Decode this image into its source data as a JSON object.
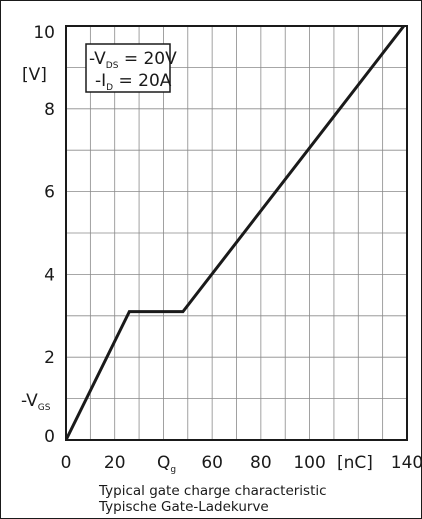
{
  "chart_data": {
    "type": "line",
    "title": "",
    "caption": [
      "Typical gate charge characteristic",
      "Typische Gate-Ladekurve"
    ],
    "xlabel": "Q",
    "xlabel_sub": "g",
    "xunit": "[nC]",
    "ylabel": "-V",
    "ylabel_sub": "GS",
    "yunit": "[V]",
    "xlim": [
      0,
      140
    ],
    "ylim": [
      0,
      10
    ],
    "grid": true,
    "x_ticks": [
      0,
      20,
      40,
      60,
      80,
      100,
      120,
      140
    ],
    "x_tick_labels": [
      "0",
      "20",
      "",
      "60",
      "80",
      "100",
      "",
      "140"
    ],
    "y_ticks": [
      0,
      2,
      4,
      6,
      8,
      10
    ],
    "y_tick_labels": [
      "0",
      "2",
      "4",
      "6",
      "8",
      "10"
    ],
    "conditions": [
      {
        "text": "-V",
        "sub": "DS",
        "value": " = 20V"
      },
      {
        "text": "-I",
        "sub": "D",
        "value": " = 20A"
      }
    ],
    "series": [
      {
        "x": [
          0,
          26,
          48,
          140
        ],
        "y": [
          0,
          3.1,
          3.1,
          10.1
        ]
      }
    ],
    "colors": {
      "line": "#1a1a1a",
      "grid": "#8a8a8a",
      "axis": "#1a1a1a"
    }
  }
}
